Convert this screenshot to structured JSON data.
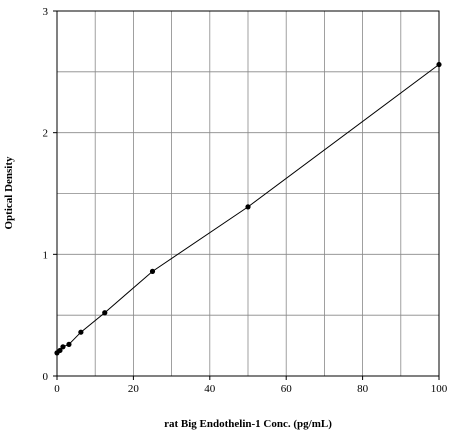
{
  "chart_data": {
    "type": "scatter",
    "title": "",
    "xlabel": "rat Big Endothelin-1 Conc. (pg/mL)",
    "ylabel": "Optical Density",
    "xlim": [
      0,
      100
    ],
    "ylim": [
      0,
      3
    ],
    "x_ticks": [
      0,
      20,
      40,
      60,
      80,
      100
    ],
    "y_ticks": [
      0,
      1,
      2,
      3
    ],
    "grid": true,
    "legend": "none",
    "series": [
      {
        "x": [
          0,
          0.78,
          1.56,
          3.13,
          6.25,
          12.5,
          25,
          50,
          100
        ],
        "y": [
          0.19,
          0.21,
          0.24,
          0.26,
          0.36,
          0.52,
          0.86,
          1.39,
          2.56
        ]
      }
    ],
    "colors": {
      "line": "#000000",
      "grid": "#888888",
      "axis": "#000000"
    }
  }
}
